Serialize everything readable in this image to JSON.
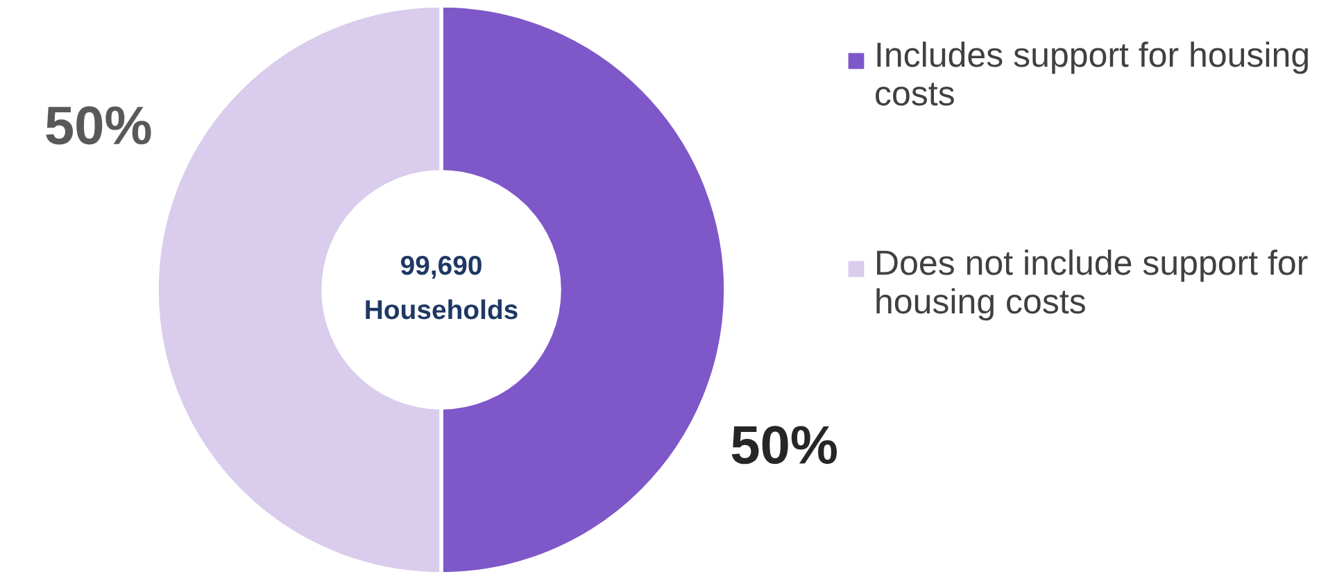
{
  "chart_data": {
    "type": "donut",
    "categories": [
      "Includes support for housing costs",
      "Does not include support for housing costs"
    ],
    "values": [
      50,
      50
    ],
    "colors": [
      "#7e57c8",
      "#d9ccec"
    ],
    "value_labels": [
      "50%",
      "50%"
    ],
    "legend": "right",
    "annotations": [
      "99,690",
      "Households"
    ]
  }
}
